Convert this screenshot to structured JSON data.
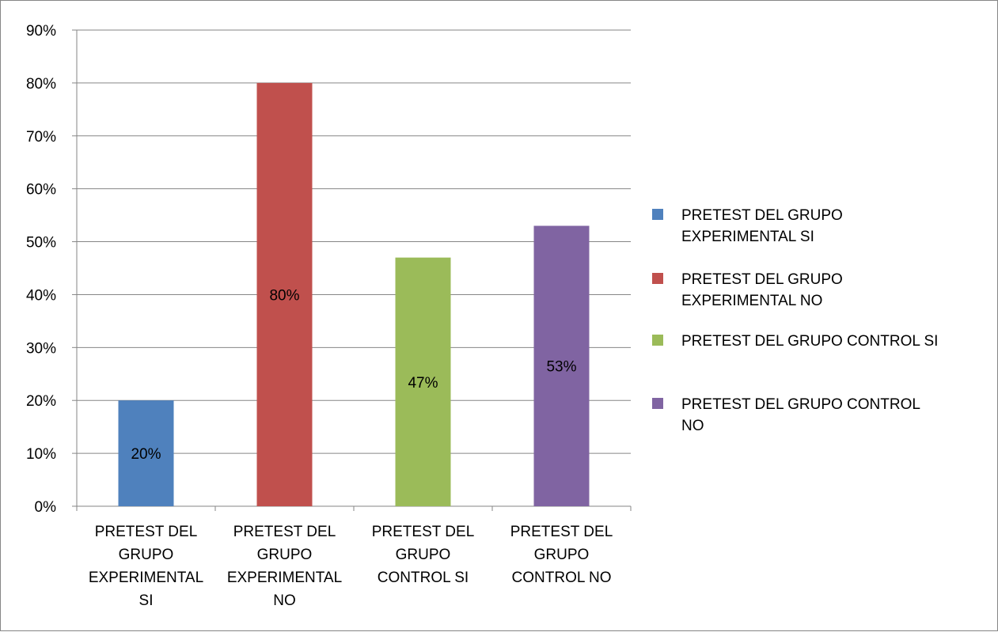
{
  "chart_data": {
    "type": "bar",
    "categories": [
      [
        "PRETEST DEL",
        "GRUPO",
        "EXPERIMENTAL",
        "SI"
      ],
      [
        "PRETEST DEL",
        "GRUPO",
        "EXPERIMENTAL",
        "NO"
      ],
      [
        "PRETEST DEL",
        "GRUPO",
        "CONTROL  SI"
      ],
      [
        "PRETEST DEL",
        "GRUPO",
        "CONTROL  NO"
      ]
    ],
    "values": [
      20,
      80,
      47,
      53
    ],
    "data_labels": [
      "20%",
      "80%",
      "47%",
      "53%"
    ],
    "colors": [
      "#4F81BD",
      "#C0504D",
      "#9BBB59",
      "#8064A2"
    ],
    "ylim": [
      0,
      90
    ],
    "ytick_step": 10,
    "ytick_suffix": "%",
    "grid": true,
    "legend_position": "right",
    "legend": [
      {
        "lines": [
          "PRETEST DEL GRUPO",
          "EXPERIMENTAL SI"
        ],
        "color": "#4F81BD"
      },
      {
        "lines": [
          "PRETEST DEL GRUPO",
          "EXPERIMENTAL  NO"
        ],
        "color": "#C0504D"
      },
      {
        "lines": [
          "PRETEST DEL GRUPO CONTROL  SI"
        ],
        "color": "#9BBB59"
      },
      {
        "lines": [
          "PRETEST DEL GRUPO CONTROL",
          "NO"
        ],
        "color": "#8064A2"
      }
    ],
    "title": "",
    "xlabel": "",
    "ylabel": ""
  }
}
